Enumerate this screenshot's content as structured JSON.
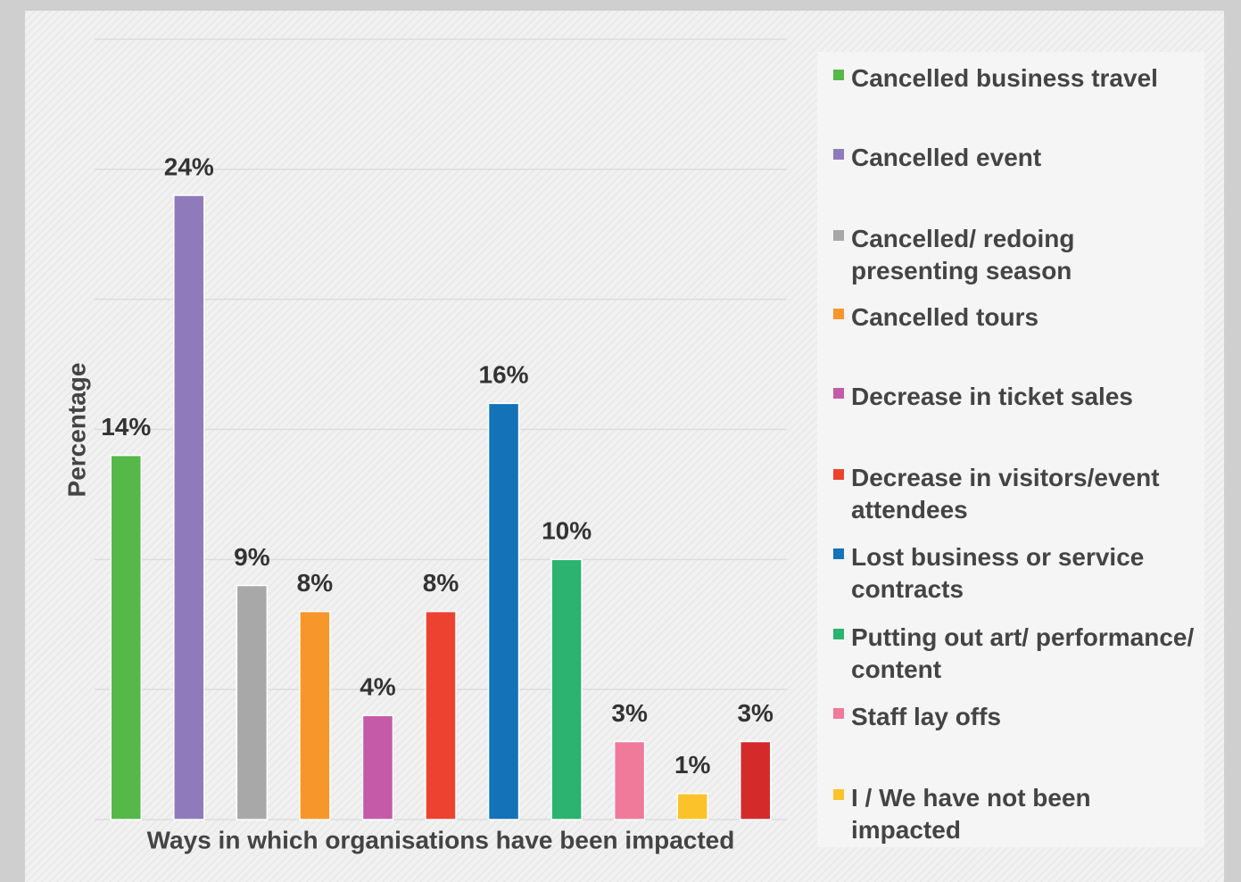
{
  "chart_data": {
    "type": "bar",
    "x_label": "Ways in which organisations have been impacted",
    "y_label": "Percentage",
    "categories": [
      "Cancelled business travel",
      "Cancelled event",
      "Cancelled/ redoing presenting season",
      "Cancelled tours",
      "Decrease in ticket sales",
      "Decrease in visitors/event attendees",
      "Lost business or service contracts",
      "Putting out art/ performance/ content",
      "Staff lay offs",
      "I / We have not been impacted",
      null
    ],
    "values": [
      14,
      24,
      9,
      8,
      4,
      8,
      16,
      10,
      3,
      1,
      3
    ],
    "value_labels": [
      "14%",
      "24%",
      "9%",
      "8%",
      "4%",
      "8%",
      "16%",
      "10%",
      "3%",
      "1%",
      "3%"
    ],
    "colors": [
      "#55b848",
      "#8f7bbb",
      "#a8a8a8",
      "#f7962b",
      "#c45aa8",
      "#ee4230",
      "#1472b9",
      "#2bb36f",
      "#f07a9a",
      "#fcc22a",
      "#d42a2a"
    ],
    "ylim": [
      0,
      30
    ],
    "yticks": [
      0,
      5,
      10,
      15,
      20,
      25,
      30
    ],
    "grid": true,
    "legend": "right"
  }
}
